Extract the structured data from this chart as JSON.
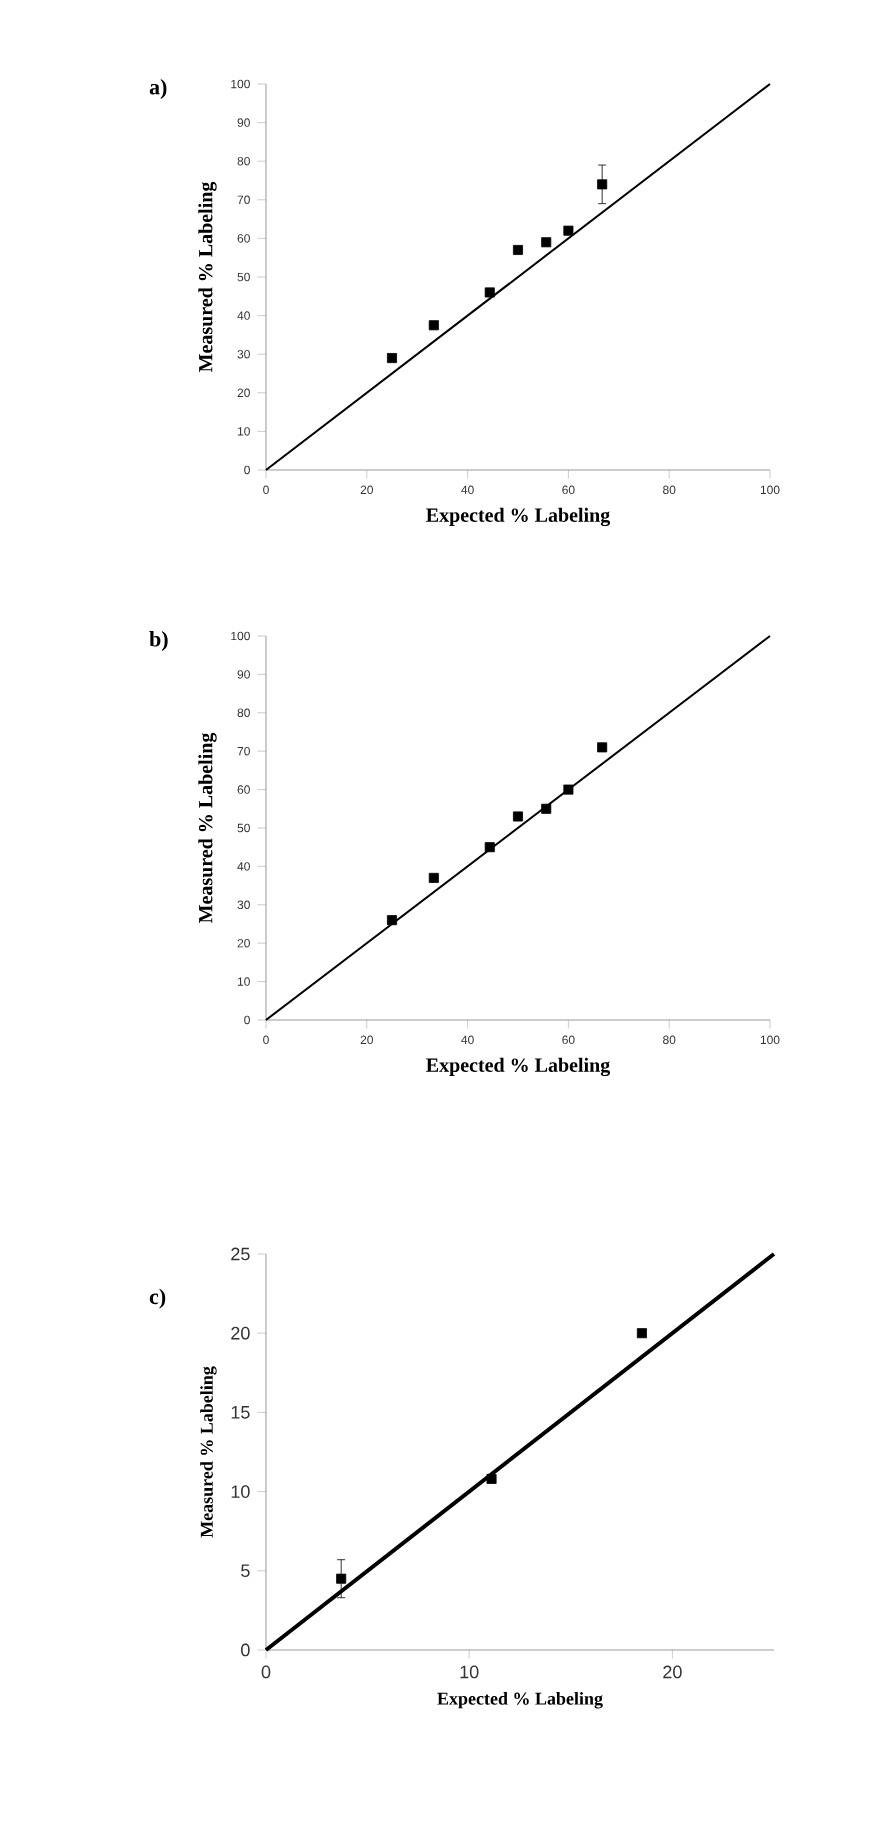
{
  "chart_data": [
    {
      "type": "scatter",
      "title": "a)",
      "xlabel": "Expected % Labeling",
      "ylabel": "Measured % Labeling",
      "xlim": [
        0,
        100
      ],
      "ylim": [
        0,
        100
      ],
      "xticks": [
        0,
        20,
        40,
        60,
        80,
        100
      ],
      "yticks": [
        0,
        10,
        20,
        30,
        40,
        50,
        60,
        70,
        80,
        90,
        100
      ],
      "series": [
        {
          "marker": "square",
          "color": "#000000",
          "x": [
            25,
            33.3,
            44.4,
            50,
            55.6,
            60,
            66.7
          ],
          "values": [
            29,
            37.5,
            46,
            57,
            59,
            62,
            74
          ],
          "errors": [
            null,
            null,
            null,
            null,
            null,
            null,
            5
          ]
        },
        {
          "type": "line",
          "marker": "none",
          "color": "#000000",
          "x": [
            0,
            100
          ],
          "values": [
            0,
            100
          ]
        }
      ]
    },
    {
      "type": "scatter",
      "title": "b)",
      "xlabel": "Expected % Labeling",
      "ylabel": "Measured % Labeling",
      "xlim": [
        0,
        100
      ],
      "ylim": [
        0,
        100
      ],
      "xticks": [
        0,
        20,
        40,
        60,
        80,
        100
      ],
      "yticks": [
        0,
        10,
        20,
        30,
        40,
        50,
        60,
        70,
        80,
        90,
        100
      ],
      "series": [
        {
          "marker": "square",
          "color": "#000000",
          "x": [
            25,
            33.3,
            44.4,
            50,
            55.6,
            60,
            66.7
          ],
          "values": [
            26,
            37,
            45,
            53,
            55,
            60,
            71
          ]
        },
        {
          "type": "line",
          "marker": "none",
          "color": "#000000",
          "x": [
            0,
            100
          ],
          "values": [
            0,
            100
          ]
        }
      ]
    },
    {
      "type": "scatter",
      "title": "c)",
      "xlabel": "Expected % Labeling",
      "ylabel": "Measured % Labeling",
      "xlim": [
        0,
        25
      ],
      "ylim": [
        0,
        25
      ],
      "xticks": [
        0,
        10,
        20
      ],
      "yticks": [
        0,
        5,
        10,
        15,
        20,
        25
      ],
      "series": [
        {
          "marker": "square",
          "color": "#000000",
          "x": [
            3.7,
            11.1,
            18.5
          ],
          "values": [
            4.5,
            10.8,
            20
          ],
          "errors": [
            1.2,
            null,
            null
          ]
        },
        {
          "type": "line",
          "marker": "none",
          "color": "#000000",
          "x": [
            0,
            25
          ],
          "values": [
            0,
            25
          ]
        }
      ]
    }
  ]
}
